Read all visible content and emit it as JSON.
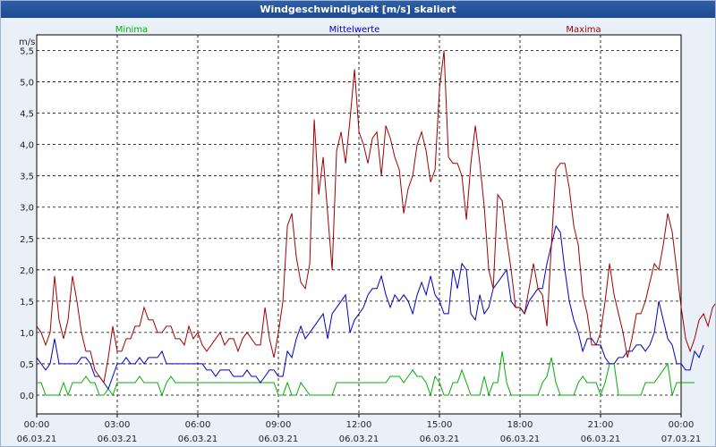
{
  "title": "Windgeschwindigkeit [m/s] skaliert",
  "chart_data": {
    "type": "line",
    "title": "Windgeschwindigkeit [m/s] skaliert",
    "ylabel": "m/s",
    "ylim": [
      -0.3,
      5.75
    ],
    "grid": true,
    "legend_position": "top",
    "y_ticks": [
      "5,5",
      "5,0",
      "4,5",
      "4,0",
      "3,5",
      "3,0",
      "2,5",
      "2,0",
      "1,5",
      "1,0",
      "0,5",
      "0,0"
    ],
    "y_tick_values": [
      5.5,
      5.0,
      4.5,
      4.0,
      3.5,
      3.0,
      2.5,
      2.0,
      1.5,
      1.0,
      0.5,
      0.0
    ],
    "x_ticks": [
      {
        "time": "00:00",
        "date": "06.03.21",
        "h": 0
      },
      {
        "time": "03:00",
        "date": "06.03.21",
        "h": 3
      },
      {
        "time": "06:00",
        "date": "06.03.21",
        "h": 6
      },
      {
        "time": "09:00",
        "date": "06.03.21",
        "h": 9
      },
      {
        "time": "12:00",
        "date": "06.03.21",
        "h": 12
      },
      {
        "time": "15:00",
        "date": "06.03.21",
        "h": 15
      },
      {
        "time": "18:00",
        "date": "06.03.21",
        "h": 18
      },
      {
        "time": "21:00",
        "date": "06.03.21",
        "h": 21
      },
      {
        "time": "00:00",
        "date": "07.03.21",
        "h": 24
      }
    ],
    "x_step_hours": 0.1667,
    "series": [
      {
        "name": "Minima",
        "color": "#00b000",
        "values": [
          0.2,
          0.2,
          0.0,
          0.0,
          0.0,
          0.0,
          0.2,
          0.0,
          0.2,
          0.2,
          0.2,
          0.3,
          0.2,
          0.2,
          0.0,
          0.0,
          0.1,
          0.0,
          0.2,
          0.2,
          0.2,
          0.2,
          0.2,
          0.3,
          0.2,
          0.2,
          0.2,
          0.2,
          0.0,
          0.2,
          0.3,
          0.2,
          0.2,
          0.2,
          0.2,
          0.2,
          0.2,
          0.2,
          0.2,
          0.2,
          0.2,
          0.2,
          0.2,
          0.2,
          0.2,
          0.2,
          0.2,
          0.2,
          0.2,
          0.2,
          0.2,
          0.2,
          0.2,
          0.2,
          0.0,
          0.0,
          0.2,
          0.0,
          0.0,
          0.2,
          0.1,
          0.0,
          0.0,
          0.0,
          0.0,
          0.0,
          0.0,
          0.2,
          0.2,
          0.2,
          0.2,
          0.2,
          0.2,
          0.2,
          0.2,
          0.2,
          0.2,
          0.2,
          0.2,
          0.3,
          0.3,
          0.3,
          0.2,
          0.3,
          0.4,
          0.3,
          0.3,
          0.2,
          0.0,
          0.3,
          0.2,
          0.0,
          0.0,
          0.2,
          0.2,
          0.4,
          0.2,
          0.0,
          0.0,
          0.0,
          0.3,
          0.0,
          0.2,
          0.2,
          0.7,
          0.2,
          0.0,
          0.0,
          0.0,
          0.0,
          0.0,
          0.0,
          0.0,
          0.2,
          0.3,
          0.6,
          0.2,
          0.0,
          0.0,
          0.0,
          0.0,
          0.2,
          0.3,
          0.2,
          0.2,
          0.2,
          0.0,
          0.2,
          0.5,
          0.5,
          0.0,
          0.0,
          0.0,
          0.0,
          0.0,
          0.0,
          0.2,
          0.2,
          0.2,
          0.3,
          0.4,
          0.5,
          0.0,
          0.2,
          0.2,
          0.2,
          0.2,
          0.2
        ],
        "values_note_unused": ""
      },
      {
        "name": "Mittelwerte",
        "color": "#0000c8",
        "values": [
          0.6,
          0.5,
          0.4,
          0.5,
          0.9,
          0.5,
          0.5,
          0.5,
          0.5,
          0.5,
          0.6,
          0.6,
          0.5,
          0.3,
          0.3,
          0.2,
          0.1,
          0.3,
          0.5,
          0.5,
          0.6,
          0.5,
          0.5,
          0.6,
          0.5,
          0.6,
          0.6,
          0.6,
          0.7,
          0.5,
          0.5,
          0.5,
          0.5,
          0.5,
          0.5,
          0.5,
          0.5,
          0.5,
          0.4,
          0.4,
          0.3,
          0.4,
          0.4,
          0.4,
          0.3,
          0.3,
          0.3,
          0.4,
          0.3,
          0.3,
          0.2,
          0.3,
          0.4,
          0.4,
          0.3,
          0.3,
          0.7,
          0.6,
          0.9,
          1.1,
          0.9,
          1.0,
          1.1,
          1.2,
          1.3,
          0.9,
          1.3,
          1.4,
          1.5,
          1.6,
          1.0,
          1.2,
          1.3,
          1.4,
          1.6,
          1.7,
          1.7,
          1.9,
          1.6,
          1.4,
          1.6,
          1.5,
          1.6,
          1.5,
          1.3,
          1.6,
          1.8,
          1.6,
          1.9,
          1.6,
          1.5,
          1.3,
          1.3,
          2.0,
          1.7,
          2.1,
          2.0,
          1.3,
          1.2,
          1.6,
          1.3,
          1.4,
          1.7,
          1.8,
          1.9,
          2.0,
          1.5,
          1.4,
          1.4,
          1.3,
          1.5,
          1.6,
          1.7,
          1.7,
          2.1,
          2.4,
          2.7,
          2.6,
          2.0,
          1.5,
          1.2,
          1.0,
          0.7,
          0.9,
          0.9,
          0.8,
          0.8,
          0.6,
          0.5,
          0.5,
          0.6,
          0.6,
          0.7,
          0.7,
          0.8,
          0.8,
          0.7,
          0.8,
          1.0,
          1.5,
          1.2,
          0.9,
          0.8,
          0.5,
          0.5,
          0.4,
          0.4,
          0.7,
          0.6,
          0.8
        ]
      },
      {
        "name": "Maxima",
        "color": "#a00000",
        "values": [
          1.1,
          1.0,
          0.8,
          1.0,
          1.9,
          1.2,
          0.9,
          1.2,
          1.9,
          1.5,
          1.0,
          0.7,
          0.7,
          0.4,
          0.3,
          0.2,
          0.6,
          1.1,
          0.7,
          0.7,
          0.9,
          0.9,
          1.1,
          1.1,
          1.4,
          1.2,
          1.2,
          1.0,
          1.0,
          1.1,
          1.1,
          0.9,
          0.9,
          0.8,
          1.1,
          0.9,
          1.0,
          0.8,
          0.7,
          0.8,
          0.9,
          1.0,
          0.8,
          0.9,
          0.9,
          0.7,
          0.9,
          1.0,
          0.9,
          0.8,
          0.8,
          1.4,
          0.9,
          0.6,
          1.0,
          1.5,
          2.7,
          2.9,
          2.2,
          1.8,
          1.7,
          2.1,
          4.4,
          3.2,
          3.8,
          2.9,
          2.0,
          3.9,
          4.2,
          3.7,
          4.4,
          5.2,
          4.2,
          4.0,
          3.7,
          4.1,
          4.2,
          3.5,
          4.3,
          4.1,
          3.8,
          3.6,
          2.9,
          3.3,
          3.5,
          4.0,
          4.2,
          3.9,
          3.4,
          3.6,
          4.9,
          5.5,
          3.8,
          3.7,
          3.7,
          3.5,
          2.8,
          3.7,
          4.3,
          3.7,
          3.0,
          2.0,
          1.7,
          3.2,
          3.1,
          2.5,
          2.0,
          1.4,
          1.4,
          1.3,
          1.7,
          2.1,
          1.7,
          1.6,
          1.1,
          2.4,
          3.6,
          3.7,
          3.7,
          3.3,
          2.7,
          2.4,
          1.6,
          1.3,
          0.8,
          0.8,
          1.0,
          1.5,
          2.1,
          1.6,
          1.3,
          1.0,
          0.6,
          0.9,
          1.3,
          1.3,
          1.5,
          1.8,
          2.1,
          2.0,
          2.4,
          2.9,
          2.6,
          2.0,
          1.4,
          0.9,
          0.7,
          0.9,
          1.2,
          1.3,
          1.1,
          1.4,
          1.5,
          1.8
        ]
      }
    ]
  }
}
